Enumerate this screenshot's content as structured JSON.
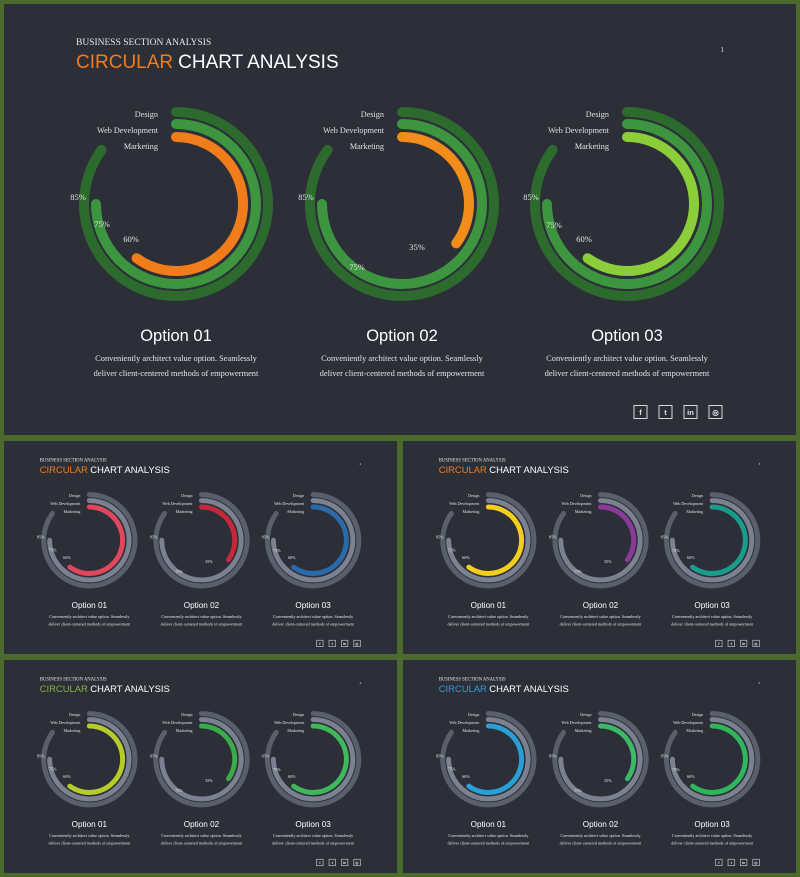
{
  "header": {
    "subtitle": "BUSINESS SECTION ANALYSIS",
    "title_accent": "CIRCULAR",
    "title_rest": "CHART ANALYSIS"
  },
  "legend": [
    "Design",
    "Web Development",
    "Marketing"
  ],
  "options": [
    {
      "name": "Option 01",
      "desc1": "Conveniently architect value option. Seamlessly",
      "desc2": "deliver client-centered methods of empowerment"
    },
    {
      "name": "Option 02",
      "desc1": "Conveniently architect value option. Seamlessly",
      "desc2": "deliver client-centered methods of empowerment"
    },
    {
      "name": "Option 03",
      "desc1": "Conveniently architect value option. Seamlessly",
      "desc2": "deliver client-centered methods of empowerment"
    }
  ],
  "social_icons": [
    "facebook-icon",
    "twitter-icon",
    "linkedin-icon",
    "instagram-icon"
  ],
  "social_glyphs": [
    "f",
    "t",
    "in",
    "◎"
  ],
  "chart_data": [
    {
      "type": "radial-bar",
      "option": "Option 01",
      "series": [
        {
          "name": "Design",
          "value": 85
        },
        {
          "name": "Web Development",
          "value": 75
        },
        {
          "name": "Marketing",
          "value": 60
        }
      ],
      "labels": [
        "85%",
        "75%",
        "60%"
      ]
    },
    {
      "type": "radial-bar",
      "option": "Option 02",
      "series": [
        {
          "name": "Design",
          "value": 85
        },
        {
          "name": "Web Development",
          "value": 75
        },
        {
          "name": "Marketing",
          "value": 35
        }
      ],
      "labels": [
        "85%",
        "75%",
        "35%"
      ]
    },
    {
      "type": "radial-bar",
      "option": "Option 03",
      "series": [
        {
          "name": "Design",
          "value": 85
        },
        {
          "name": "Web Development",
          "value": 75
        },
        {
          "name": "Marketing",
          "value": 60
        }
      ],
      "labels": [
        "85%",
        "75%",
        "60%"
      ]
    }
  ],
  "slides": [
    {
      "page_number": "1",
      "accent": "#f07c1a",
      "rings": [
        [
          "#2c6a2e",
          "#3d963f",
          "#f07c1a"
        ],
        [
          "#2c6a2e",
          "#3d963f",
          "#f28c1a"
        ],
        [
          "#2c6a2e",
          "#3d963f",
          "#8ccd3a"
        ]
      ]
    },
    {
      "page_number": "2",
      "accent": "#f07c1a",
      "rings": [
        [
          "#5a5f6c",
          "#7b8190",
          "#e0475d"
        ],
        [
          "#5a5f6c",
          "#7b8190",
          "#c4283a"
        ],
        [
          "#5a5f6c",
          "#7b8190",
          "#2a6aab"
        ]
      ]
    },
    {
      "page_number": "3",
      "accent": "#f07c1a",
      "rings": [
        [
          "#5a5f6c",
          "#7b8190",
          "#f2cf1c"
        ],
        [
          "#5a5f6c",
          "#7b8190",
          "#8b3a9a"
        ],
        [
          "#5a5f6c",
          "#7b8190",
          "#1a9c8c"
        ]
      ]
    },
    {
      "page_number": "4",
      "accent": "#8ab33a",
      "rings": [
        [
          "#5a5f6c",
          "#7b8190",
          "#b6cc2a"
        ],
        [
          "#5a5f6c",
          "#7b8190",
          "#3aaa4a"
        ],
        [
          "#5a5f6c",
          "#7b8190",
          "#3eb85a"
        ]
      ]
    },
    {
      "page_number": "5",
      "accent": "#2a9fd6",
      "rings": [
        [
          "#5a5f6c",
          "#7b8190",
          "#2a9fd6"
        ],
        [
          "#5a5f6c",
          "#7b8190",
          "#3cb867"
        ],
        [
          "#5a5f6c",
          "#7b8190",
          "#2fb55b"
        ]
      ]
    }
  ]
}
